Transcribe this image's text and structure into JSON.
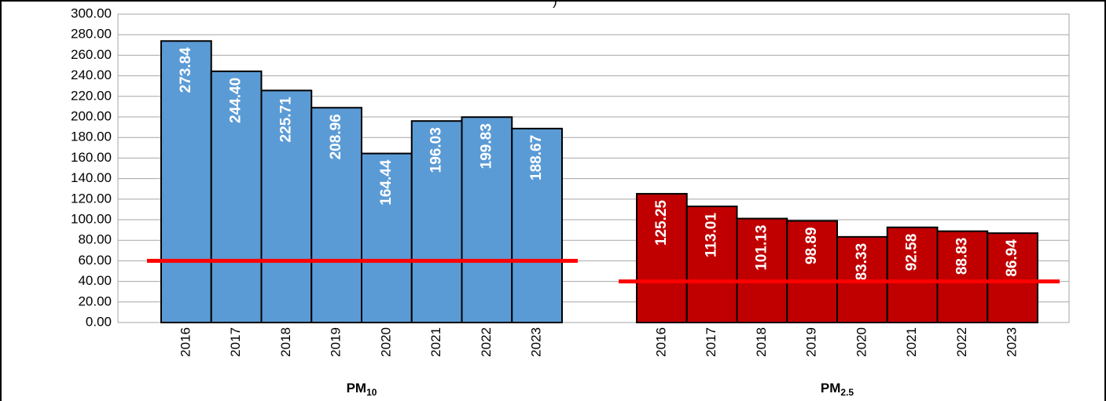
{
  "chart_data": {
    "type": "bar",
    "fragment": ")",
    "categories": [
      "2016",
      "2017",
      "2018",
      "2019",
      "2020",
      "2021",
      "2022",
      "2023"
    ],
    "series": [
      {
        "name": "PM",
        "subscript": "10",
        "color": "#5b9bd5",
        "values": [
          273.84,
          244.4,
          225.71,
          208.96,
          164.44,
          196.03,
          199.83,
          188.67
        ],
        "value_labels": [
          "273.84",
          "244.40",
          "225.71",
          "208.96",
          "164.44",
          "196.03",
          "199.83",
          "188.67"
        ],
        "limit": 60
      },
      {
        "name": "PM",
        "subscript": "2.5",
        "color": "#c00000",
        "values": [
          125.25,
          113.01,
          101.13,
          98.89,
          83.33,
          92.58,
          88.83,
          86.94
        ],
        "value_labels": [
          "125.25",
          "113.01",
          "101.13",
          "98.89",
          "83.33",
          "92.58",
          "88.83",
          "86.94"
        ],
        "limit": 40
      }
    ],
    "limit_color": "#ff0000",
    "ylim": [
      0,
      300
    ],
    "yticks": [
      {
        "value": 0,
        "label": "0.00"
      },
      {
        "value": 20,
        "label": "20.00"
      },
      {
        "value": 40,
        "label": "40.00"
      },
      {
        "value": 60,
        "label": "60.00"
      },
      {
        "value": 80,
        "label": "80.00"
      },
      {
        "value": 100,
        "label": "100.00"
      },
      {
        "value": 120,
        "label": "120.00"
      },
      {
        "value": 140,
        "label": "140.00"
      },
      {
        "value": 160,
        "label": "160.00"
      },
      {
        "value": 180,
        "label": "180.00"
      },
      {
        "value": 200,
        "label": "200.00"
      },
      {
        "value": 220,
        "label": "220.00"
      },
      {
        "value": 240,
        "label": "240.00"
      },
      {
        "value": 260,
        "label": "260.00"
      },
      {
        "value": 280,
        "label": "280.00"
      },
      {
        "value": 300,
        "label": "300.00"
      }
    ],
    "grid": true
  }
}
